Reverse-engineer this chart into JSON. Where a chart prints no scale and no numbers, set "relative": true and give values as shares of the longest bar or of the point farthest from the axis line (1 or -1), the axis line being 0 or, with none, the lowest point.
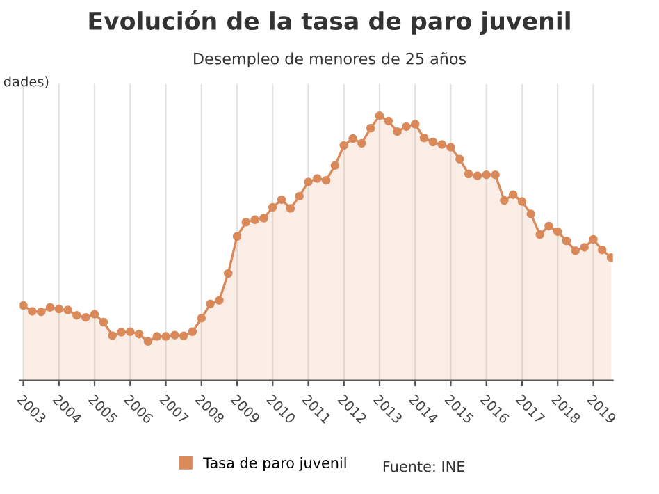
{
  "chart_data": {
    "type": "area",
    "title": "Evolución de la tasa de paro juvenil",
    "subtitle": "Desempleo de menores de 25 años",
    "ylabel": "dades)",
    "relative": true,
    "x": [
      2003,
      2003.25,
      2003.5,
      2003.75,
      2004,
      2004.25,
      2004.5,
      2004.75,
      2005,
      2005.25,
      2005.5,
      2005.75,
      2006,
      2006.25,
      2006.5,
      2006.75,
      2007,
      2007.25,
      2007.5,
      2007.75,
      2008,
      2008.25,
      2008.5,
      2008.75,
      2009,
      2009.25,
      2009.5,
      2009.75,
      2010,
      2010.25,
      2010.5,
      2010.75,
      2011,
      2011.25,
      2011.5,
      2011.75,
      2012,
      2012.25,
      2012.5,
      2012.75,
      2013,
      2013.25,
      2013.5,
      2013.75,
      2014,
      2014.25,
      2014.5,
      2014.75,
      2015,
      2015.25,
      2015.5,
      2015.75,
      2016,
      2016.25,
      2016.5,
      2016.75,
      2017,
      2017.25,
      2017.5,
      2017.75,
      2018,
      2018.25,
      2018.5,
      2018.75,
      2019,
      2019.25,
      2019.5
    ],
    "series": [
      {
        "name": "Tasa de paro juvenil",
        "color": "#d9895a",
        "values": [
          0.283,
          0.261,
          0.259,
          0.276,
          0.27,
          0.266,
          0.246,
          0.238,
          0.25,
          0.22,
          0.169,
          0.182,
          0.184,
          0.175,
          0.147,
          0.166,
          0.166,
          0.171,
          0.168,
          0.184,
          0.235,
          0.289,
          0.302,
          0.404,
          0.544,
          0.598,
          0.607,
          0.613,
          0.654,
          0.683,
          0.65,
          0.696,
          0.75,
          0.763,
          0.756,
          0.812,
          0.888,
          0.914,
          0.896,
          0.953,
          1,
          0.98,
          0.94,
          0.959,
          0.968,
          0.916,
          0.901,
          0.892,
          0.881,
          0.836,
          0.78,
          0.773,
          0.777,
          0.777,
          0.68,
          0.702,
          0.676,
          0.629,
          0.551,
          0.583,
          0.562,
          0.527,
          0.49,
          0.503,
          0.533,
          0.493,
          0.464
        ]
      }
    ],
    "xlim": [
      2002.9,
      2019.55
    ],
    "xticks": [
      2003,
      2004,
      2005,
      2006,
      2007,
      2008,
      2009,
      2010,
      2011,
      2012,
      2013,
      2014,
      2015,
      2016,
      2017,
      2018,
      2019
    ],
    "grid": "x",
    "marker": "circle",
    "line_style": "solid",
    "legend": "bottom",
    "annotations": [
      "Fuente: INE"
    ]
  }
}
